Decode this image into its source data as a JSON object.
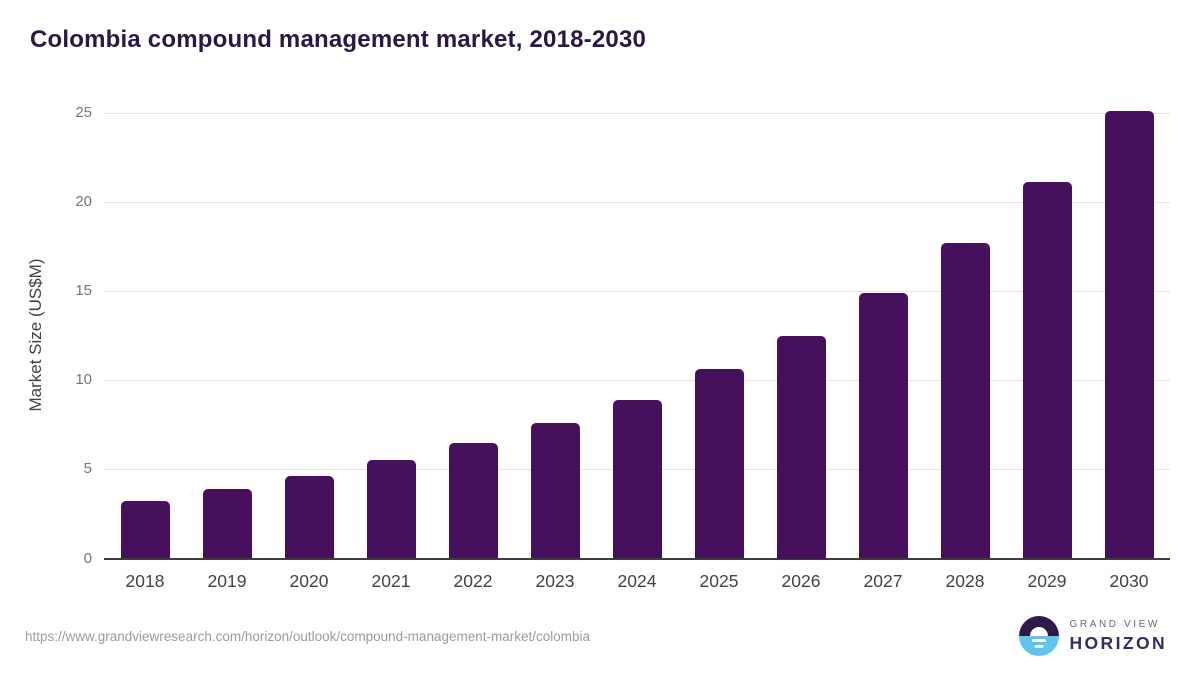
{
  "title": "Colombia compound management market, 2018-2030",
  "chart_data": {
    "type": "bar",
    "title": "Colombia compound management market, 2018-2030",
    "categories": [
      "2018",
      "2019",
      "2020",
      "2021",
      "2022",
      "2023",
      "2024",
      "2025",
      "2026",
      "2027",
      "2028",
      "2029",
      "2030"
    ],
    "values": [
      3.2,
      3.9,
      4.6,
      5.5,
      6.5,
      7.6,
      8.9,
      10.6,
      12.5,
      14.9,
      17.7,
      21.1,
      25.1
    ],
    "xlabel": "",
    "ylabel": "Market Size (US$M)",
    "ylim": [
      0,
      25
    ],
    "yticks": [
      0,
      5,
      10,
      15,
      20,
      25
    ],
    "grid": true,
    "legend": "none",
    "bar_color": "#46105c"
  },
  "colors": {
    "title_text": "#2b1646",
    "axis_text": "#424242",
    "tick_text": "#757575",
    "gridline": "#e4e4e4",
    "axis_line": "#3c3c3c",
    "url_text": "#9b9b9b",
    "logo_purple": "#2e1a47",
    "logo_blue": "#5fc4f0",
    "brand_top_text": "#6b6473",
    "brand_bottom_text": "#372a5e"
  },
  "footer": {
    "source_url": "https://www.grandviewresearch.com/horizon/outlook/compound-management-market/colombia",
    "brand": {
      "line1": "GRAND VIEW",
      "line2": "HORIZON"
    }
  }
}
